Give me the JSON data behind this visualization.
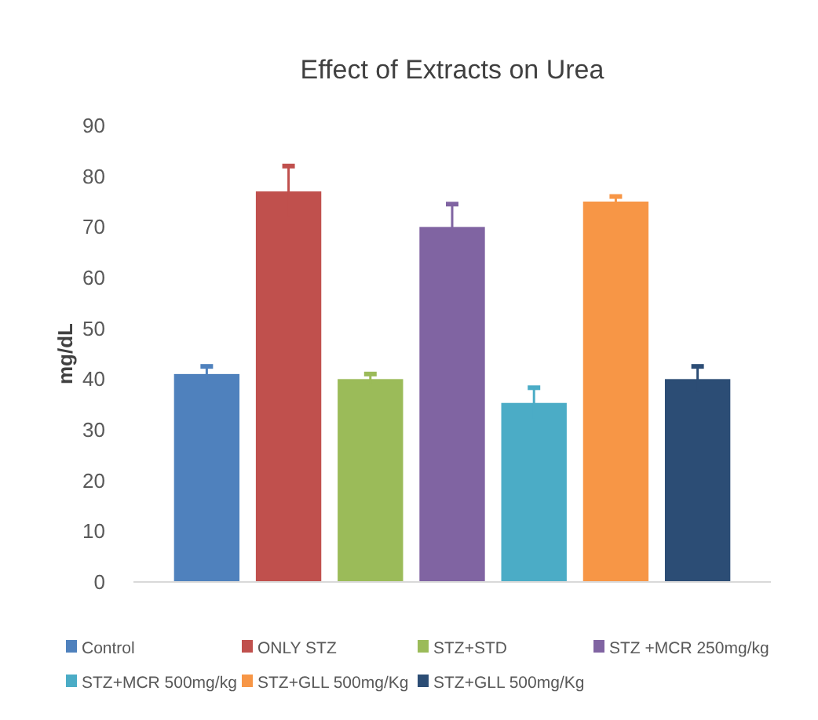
{
  "chart_data": {
    "type": "bar",
    "title": "Effect of Extracts on Urea",
    "ylabel": "mg/dL",
    "categories": [
      null,
      null,
      null,
      null,
      null,
      null,
      null
    ],
    "ylim": [
      0,
      90
    ],
    "yticks": [
      0,
      10,
      20,
      30,
      40,
      50,
      60,
      70,
      80,
      90
    ],
    "legend": "bottom",
    "series": [
      {
        "name": "Control",
        "color": "#4f81bd",
        "values": [
          41,
          null,
          null,
          null,
          null,
          null,
          null
        ],
        "errors": [
          1.5,
          null,
          null,
          null,
          null,
          null,
          null
        ]
      },
      {
        "name": "ONLY STZ",
        "color": "#c0504d",
        "values": [
          null,
          77,
          null,
          null,
          null,
          null,
          null
        ],
        "errors": [
          null,
          5,
          null,
          null,
          null,
          null,
          null
        ]
      },
      {
        "name": "STZ+STD",
        "color": "#9bbb59",
        "values": [
          null,
          null,
          40,
          null,
          null,
          null,
          null
        ],
        "errors": [
          null,
          null,
          1,
          null,
          null,
          null,
          null
        ]
      },
      {
        "name": "STZ +MCR 250mg/kg",
        "color": "#8064a2",
        "values": [
          null,
          null,
          null,
          70,
          null,
          null,
          null
        ],
        "errors": [
          null,
          null,
          null,
          4.5,
          null,
          null,
          null
        ]
      },
      {
        "name": "STZ+MCR 500mg/kg",
        "color": "#4bacc6",
        "values": [
          null,
          null,
          null,
          null,
          35.3,
          null,
          null
        ],
        "errors": [
          null,
          null,
          null,
          null,
          3,
          null,
          null
        ]
      },
      {
        "name": "STZ+GLL 500mg/Kg",
        "color": "#f79646",
        "values": [
          null,
          null,
          null,
          null,
          null,
          75,
          null
        ],
        "errors": [
          null,
          null,
          null,
          null,
          null,
          1,
          null
        ]
      },
      {
        "name": "STZ+GLL 500mg/Kg",
        "color": "#2c4d75",
        "values": [
          null,
          null,
          null,
          null,
          null,
          null,
          40
        ],
        "errors": [
          null,
          null,
          null,
          null,
          null,
          null,
          2.5
        ]
      }
    ]
  }
}
